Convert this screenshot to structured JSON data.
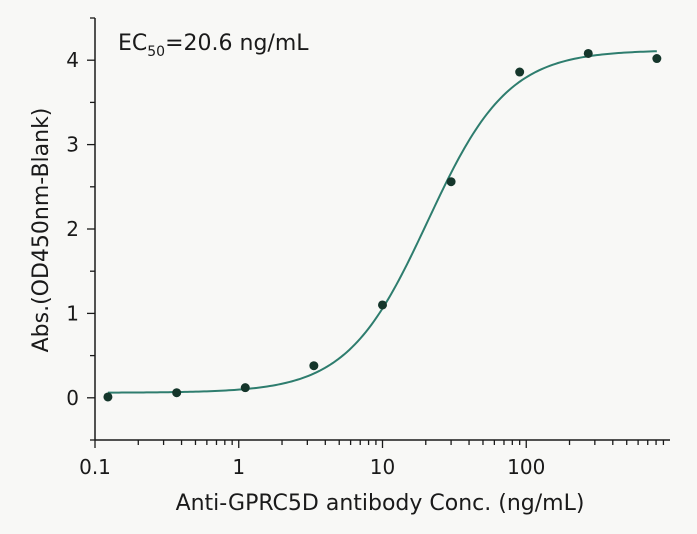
{
  "chart_data": {
    "type": "scatter",
    "xlabel": "Anti-GPRC5D antibody Conc. (ng/mL)",
    "ylabel": "Abs.(OD450nm-Blank)",
    "x_scale": "log",
    "xlim": [
      0.1,
      1000
    ],
    "ylim": [
      -0.5,
      4.5
    ],
    "x_ticks": [
      {
        "value": 0.1,
        "label": "0.1"
      },
      {
        "value": 1,
        "label": "1"
      },
      {
        "value": 10,
        "label": "10"
      },
      {
        "value": 100,
        "label": "100"
      }
    ],
    "y_ticks": [
      {
        "value": 0,
        "label": "0"
      },
      {
        "value": 1,
        "label": "1"
      },
      {
        "value": 2,
        "label": "2"
      },
      {
        "value": 3,
        "label": "3"
      },
      {
        "value": 4,
        "label": "4"
      }
    ],
    "annotation": {
      "prefix": "EC",
      "subscript": "50",
      "suffix": "=20.6 ng/mL"
    },
    "series": [
      {
        "points": [
          {
            "x": 0.123,
            "y": 0.01
          },
          {
            "x": 0.37,
            "y": 0.06
          },
          {
            "x": 1.11,
            "y": 0.12
          },
          {
            "x": 3.33,
            "y": 0.38
          },
          {
            "x": 10,
            "y": 1.1
          },
          {
            "x": 30,
            "y": 2.56
          },
          {
            "x": 90,
            "y": 3.86
          },
          {
            "x": 270,
            "y": 4.08
          },
          {
            "x": 810,
            "y": 4.02
          }
        ]
      }
    ],
    "fit": {
      "type": "4PL",
      "bottom": 0.06,
      "top": 4.12,
      "ec50": 20.6,
      "hill": 1.55
    },
    "colors": {
      "curve": "#2e7d6e",
      "points": "#15362b",
      "axis": "#1a1a1a"
    }
  }
}
